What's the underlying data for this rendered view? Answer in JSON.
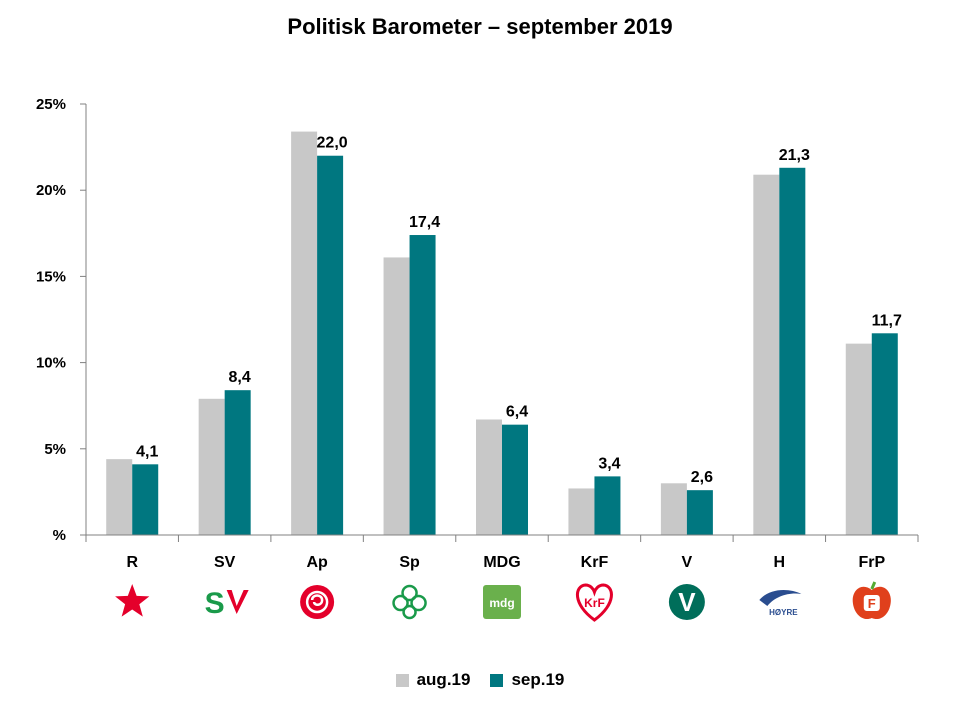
{
  "chart_data": {
    "type": "bar",
    "title": "Politisk Barometer – september 2019",
    "categories": [
      "R",
      "SV",
      "Ap",
      "Sp",
      "MDG",
      "KrF",
      "V",
      "H",
      "FrP"
    ],
    "series": [
      {
        "name": "aug.19",
        "color": "#c8c8c8",
        "values": [
          4.4,
          7.9,
          23.4,
          16.1,
          6.7,
          2.7,
          3.0,
          20.9,
          11.1
        ]
      },
      {
        "name": "sep.19",
        "color": "#007780",
        "values": [
          4.1,
          8.4,
          22.0,
          17.4,
          6.4,
          3.4,
          2.6,
          21.3,
          11.7
        ]
      }
    ],
    "data_labels": [
      "4,1",
      "8,4",
      "22,0",
      "17,4",
      "6,4",
      "3,4",
      "2,6",
      "21,3",
      "11,7"
    ],
    "y_ticks": [
      {
        "value": 0,
        "label": "%"
      },
      {
        "value": 5,
        "label": "5%"
      },
      {
        "value": 10,
        "label": "10%"
      },
      {
        "value": 15,
        "label": "15%"
      },
      {
        "value": 20,
        "label": "20%"
      },
      {
        "value": 25,
        "label": "25%"
      }
    ],
    "ylim": [
      0,
      25
    ],
    "xlabel": "",
    "ylabel": "",
    "legend_position": "bottom",
    "grid": false
  },
  "logos": [
    {
      "party": "R",
      "icon": "red-star-icon",
      "color": "#e4002b"
    },
    {
      "party": "SV",
      "icon": "sv-logo-icon",
      "color": "#1a9a4a",
      "text": "S"
    },
    {
      "party": "Ap",
      "icon": "rose-icon",
      "color": "#e4002b"
    },
    {
      "party": "Sp",
      "icon": "clover-icon",
      "color": "#1a9a4a"
    },
    {
      "party": "MDG",
      "icon": "mdg-logo-icon",
      "color": "#6ab04c",
      "text": "mdg"
    },
    {
      "party": "KrF",
      "icon": "krf-heart-icon",
      "color": "#e4002b",
      "text": "KrF"
    },
    {
      "party": "V",
      "icon": "v-circle-icon",
      "color": "#006e5a",
      "text": "V"
    },
    {
      "party": "H",
      "icon": "hoyre-logo-icon",
      "color": "#2a4d8f",
      "text": "HØYRE"
    },
    {
      "party": "FrP",
      "icon": "frp-apple-icon",
      "color": "#e0401c",
      "text": "F"
    }
  ]
}
